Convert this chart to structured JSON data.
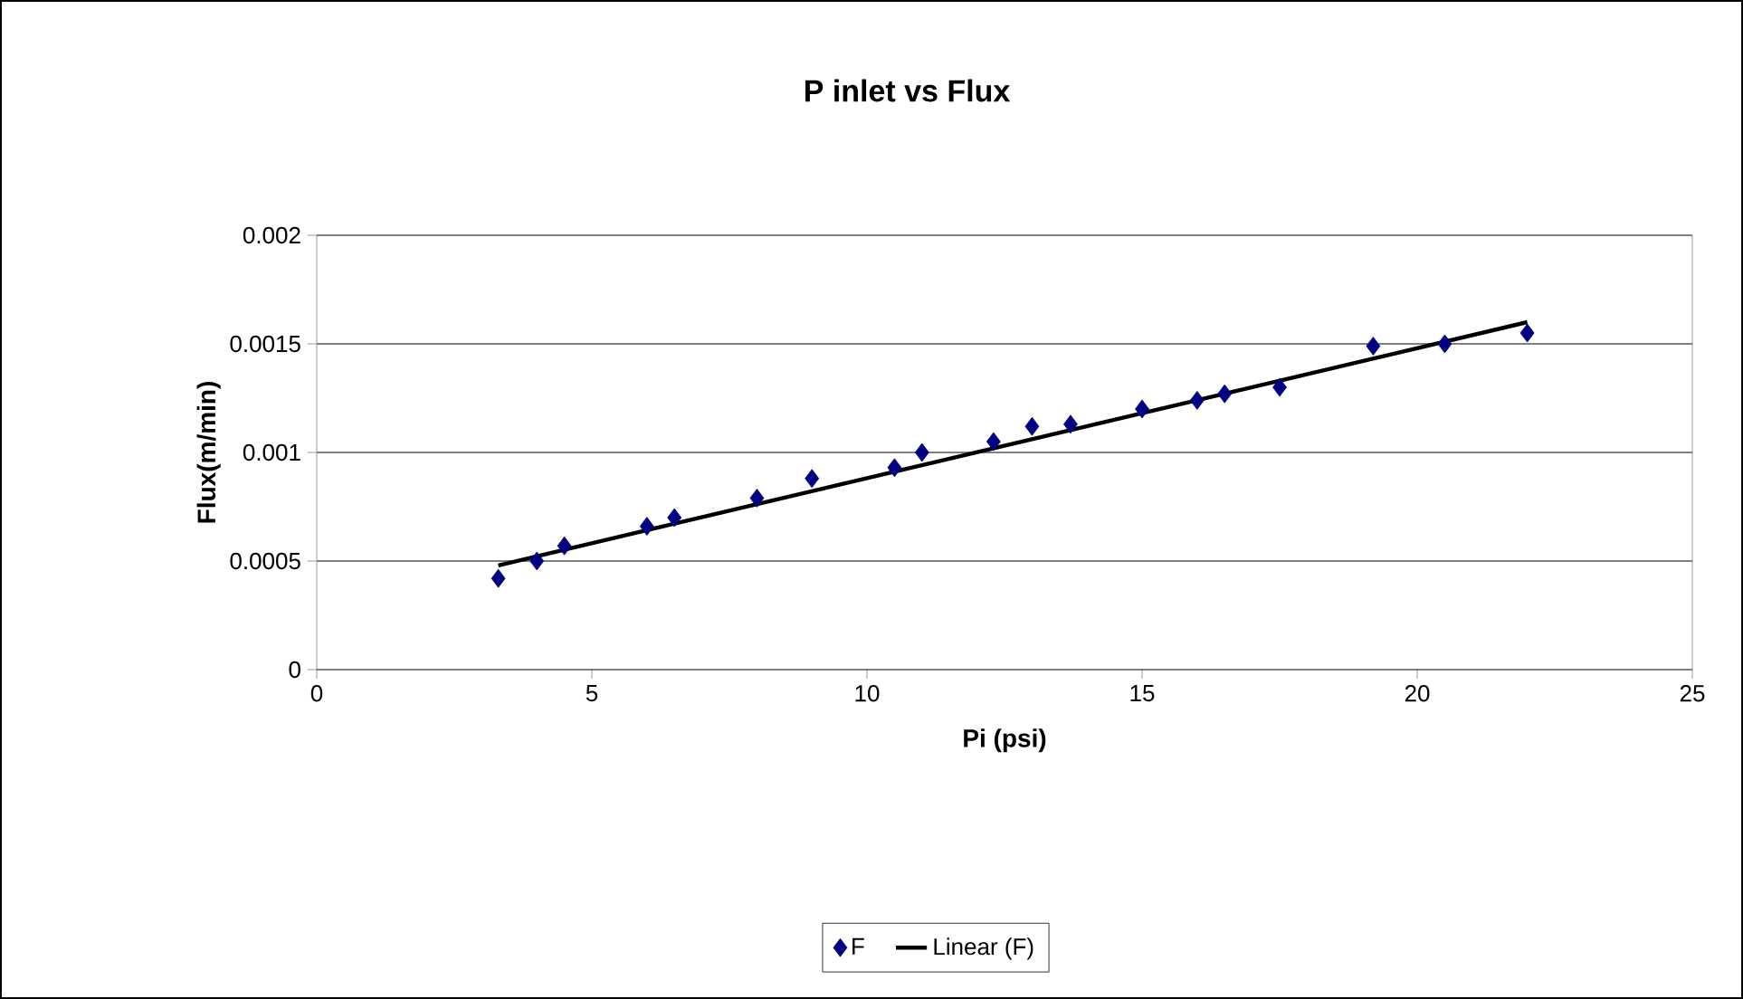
{
  "chart_data": {
    "type": "scatter",
    "title": "P inlet vs Flux",
    "xlabel": "Pi (psi)",
    "ylabel": "Flux(m/min)",
    "xlim": [
      0,
      25
    ],
    "xticks": [
      0,
      5,
      10,
      15,
      20,
      25
    ],
    "ylim": [
      0,
      0.002
    ],
    "yticks": [
      0,
      0.0005,
      0.001,
      0.0015,
      0.002
    ],
    "grid": "y",
    "legend": "bottom",
    "marker": "diamond",
    "series": [
      {
        "name": "F",
        "color": "#000080",
        "x": [
          3.3,
          4,
          4.5,
          6,
          6.5,
          8,
          9,
          10.5,
          11,
          12.3,
          13,
          13.7,
          15,
          16,
          16.5,
          17.5,
          19.2,
          20.5,
          22
        ],
        "values": [
          0.00042,
          0.0005,
          0.00057,
          0.00066,
          0.0007,
          0.00079,
          0.00088,
          0.00093,
          0.001,
          0.00105,
          0.00112,
          0.00113,
          0.0012,
          0.00124,
          0.00127,
          0.0013,
          0.00149,
          0.0015,
          0.00155
        ]
      },
      {
        "name": "Linear (F)",
        "type": "line",
        "marker": "none",
        "color": "#000000",
        "x": [
          3.3,
          22
        ],
        "values": [
          0.00048,
          0.0016
        ]
      }
    ]
  }
}
